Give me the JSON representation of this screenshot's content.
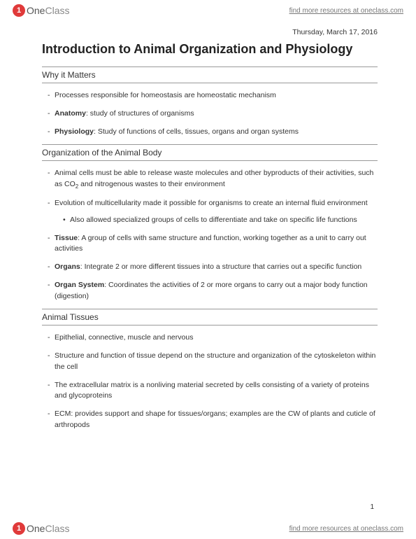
{
  "brand": {
    "logo_char": "1",
    "name_one": "One",
    "name_class": "Class"
  },
  "header": {
    "link_text": "find more resources at oneclass.com"
  },
  "footer": {
    "link_text": "find more resources at oneclass.com"
  },
  "date": "Thursday, March 17, 2016",
  "title": "Introduction to Animal Organization and Physiology",
  "page_number": "1",
  "sections": {
    "s1": {
      "title": "Why it Matters",
      "b1": "Processes responsible for homeostasis are homeostatic mechanism",
      "b2_term": "Anatomy",
      "b2_rest": ": study of structures of organisms",
      "b3_term": "Physiology",
      "b3_rest": ": Study of functions of cells, tissues, organs and organ systems"
    },
    "s2": {
      "title": "Organization of the Animal Body",
      "b1_a": "Animal cells must be able to release waste molecules and other byproducts of their activities, such as CO",
      "b1_sub": "2",
      "b1_b": " and nitrogenous wastes to their environment",
      "b2": "Evolution of multicellularity made it possible for organisms to create an internal fluid environment",
      "b2_sub1": "Also allowed specialized groups of cells to differentiate and take on specific life functions",
      "b3_term": "Tissue",
      "b3_rest": ": A group of cells with same structure and function, working together as a unit to carry out activities",
      "b4_term": "Organs",
      "b4_rest": ": Integrate 2 or more different tissues into a structure that carries out a specific function",
      "b5_term": "Organ System",
      "b5_rest": ": Coordinates the activities of 2 or more organs to carry out a major body function (digestion)"
    },
    "s3": {
      "title": "Animal Tissues",
      "b1": "Epithelial, connective, muscle and nervous",
      "b2": "Structure and function of tissue depend on the structure and organization of the cytoskeleton within the cell",
      "b3": "The extracellular matrix is a nonliving material secreted by cells consisting of a variety of proteins and glycoproteins",
      "b4": "ECM: provides support and shape for tissues/organs; examples are the CW of plants and cuticle of arthropods"
    }
  },
  "colors": {
    "text": "#333333",
    "rule": "#999999",
    "logo_bg": "#e03a3a",
    "link": "#777777",
    "background": "#ffffff"
  },
  "typography": {
    "body_fontsize": 10.5,
    "title_fontsize": 18,
    "section_fontsize": 12,
    "small_fontsize": 10
  }
}
